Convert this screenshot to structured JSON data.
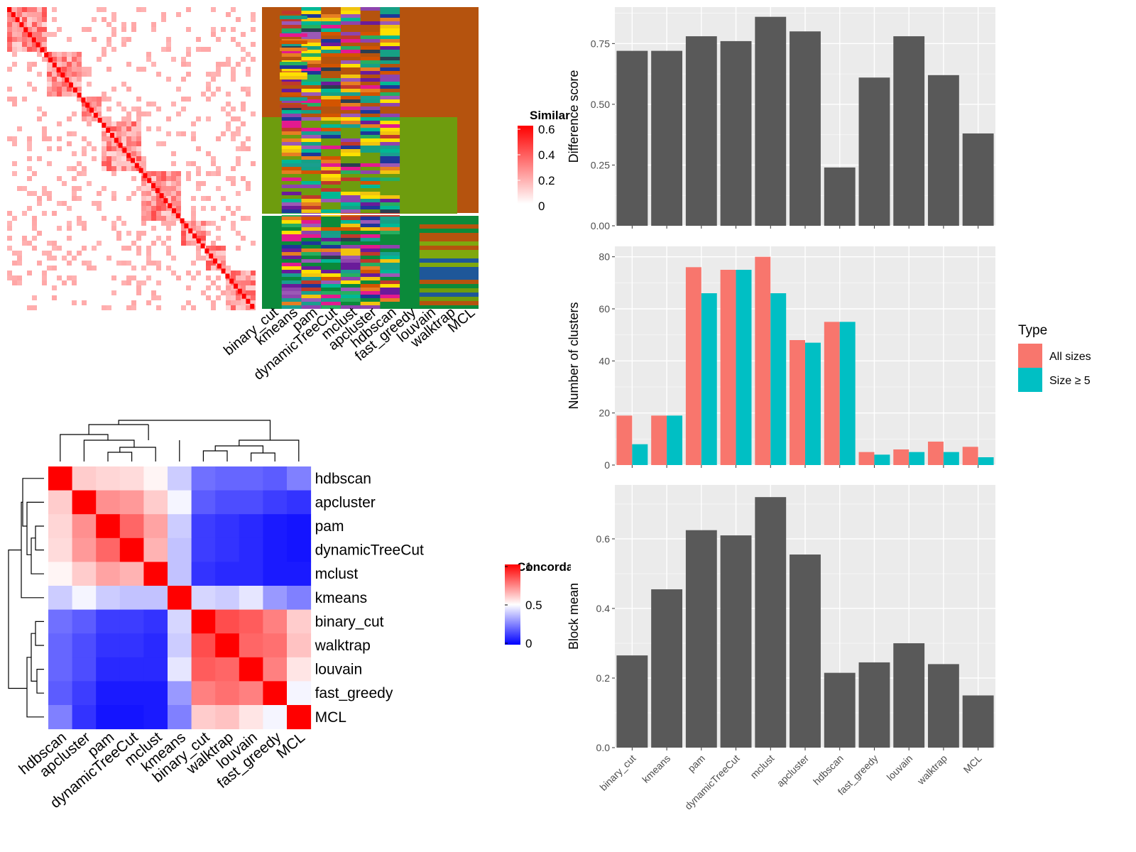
{
  "similarity_panel": {
    "legend_title": "Similarity",
    "legend_ticks": [
      "0.6",
      "0.4",
      "0.2",
      "0"
    ],
    "colors": {
      "high": "#ff0000",
      "low": "#ffffff"
    },
    "method_columns": [
      "binary_cut",
      "kmeans",
      "pam",
      "dynamicTreeCut",
      "mclust",
      "apcluster",
      "hdbscan",
      "fast_greedy",
      "louvain",
      "walktrap",
      "MCL"
    ]
  },
  "concordance_panel": {
    "legend_title": "Concordance",
    "legend_ticks": [
      "1",
      "0.5",
      "0"
    ],
    "colors": {
      "high": "#ff0000",
      "mid": "#ffffff",
      "low": "#0000ff"
    }
  },
  "chart_data": [
    {
      "type": "heatmap",
      "id": "concordance",
      "legend_title": "Concordance",
      "rows": [
        "hdbscan",
        "apcluster",
        "pam",
        "dynamicTreeCut",
        "mclust",
        "kmeans",
        "binary_cut",
        "walktrap",
        "louvain",
        "fast_greedy",
        "MCL"
      ],
      "cols": [
        "hdbscan",
        "apcluster",
        "pam",
        "dynamicTreeCut",
        "mclust",
        "kmeans",
        "binary_cut",
        "walktrap",
        "louvain",
        "fast_greedy",
        "MCL"
      ],
      "values": [
        [
          1.0,
          0.6,
          0.58,
          0.57,
          0.52,
          0.4,
          0.22,
          0.2,
          0.2,
          0.18,
          0.25
        ],
        [
          0.6,
          1.0,
          0.72,
          0.7,
          0.6,
          0.48,
          0.18,
          0.15,
          0.15,
          0.12,
          0.1
        ],
        [
          0.58,
          0.72,
          1.0,
          0.8,
          0.68,
          0.4,
          0.12,
          0.1,
          0.08,
          0.05,
          0.04
        ],
        [
          0.57,
          0.7,
          0.8,
          1.0,
          0.65,
          0.38,
          0.12,
          0.1,
          0.08,
          0.05,
          0.04
        ],
        [
          0.52,
          0.6,
          0.68,
          0.65,
          1.0,
          0.38,
          0.1,
          0.08,
          0.08,
          0.05,
          0.05
        ],
        [
          0.4,
          0.48,
          0.4,
          0.38,
          0.38,
          1.0,
          0.42,
          0.4,
          0.45,
          0.3,
          0.25
        ],
        [
          0.22,
          0.18,
          0.12,
          0.12,
          0.1,
          0.42,
          1.0,
          0.85,
          0.82,
          0.75,
          0.6
        ],
        [
          0.2,
          0.15,
          0.1,
          0.1,
          0.08,
          0.4,
          0.85,
          1.0,
          0.8,
          0.78,
          0.62
        ],
        [
          0.2,
          0.15,
          0.08,
          0.08,
          0.08,
          0.45,
          0.82,
          0.8,
          1.0,
          0.75,
          0.55
        ],
        [
          0.18,
          0.12,
          0.05,
          0.05,
          0.05,
          0.3,
          0.75,
          0.78,
          0.75,
          1.0,
          0.48
        ],
        [
          0.25,
          0.1,
          0.04,
          0.04,
          0.05,
          0.25,
          0.6,
          0.62,
          0.55,
          0.48,
          1.0
        ]
      ]
    },
    {
      "type": "bar",
      "id": "difference-score",
      "categories": [
        "binary_cut",
        "kmeans",
        "pam",
        "dynamicTreeCut",
        "mclust",
        "apcluster",
        "hdbscan",
        "fast_greedy",
        "louvain",
        "walktrap",
        "MCL"
      ],
      "values": [
        0.72,
        0.72,
        0.78,
        0.76,
        0.86,
        0.8,
        0.24,
        0.61,
        0.78,
        0.62,
        0.38
      ],
      "ylabel": "Difference score",
      "ylim": [
        0,
        0.9
      ],
      "yticks": [
        0.0,
        0.25,
        0.5,
        0.75
      ],
      "ytick_labels": [
        "0.00",
        "0.25",
        "0.50",
        "0.75"
      ],
      "grid": true,
      "color": "#595959"
    },
    {
      "type": "bar",
      "id": "number-of-clusters",
      "categories": [
        "binary_cut",
        "kmeans",
        "pam",
        "dynamicTreeCut",
        "mclust",
        "apcluster",
        "hdbscan",
        "fast_greedy",
        "louvain",
        "walktrap",
        "MCL"
      ],
      "series": [
        {
          "name": "All sizes",
          "color": "#f8766d",
          "values": [
            19,
            19,
            76,
            75,
            80,
            48,
            55,
            5,
            6,
            9,
            7
          ]
        },
        {
          "name": "Size ≥ 5",
          "color": "#00bfc4",
          "values": [
            8,
            19,
            66,
            75,
            66,
            47,
            55,
            4,
            5,
            5,
            3
          ]
        }
      ],
      "ylabel": "Number of clusters",
      "ylim": [
        0,
        84
      ],
      "yticks": [
        0,
        20,
        40,
        60,
        80
      ],
      "ytick_labels": [
        "0",
        "20",
        "40",
        "60",
        "80"
      ],
      "legend_title": "Type",
      "legend_position": "right",
      "grid": true
    },
    {
      "type": "bar",
      "id": "block-mean",
      "categories": [
        "binary_cut",
        "kmeans",
        "pam",
        "dynamicTreeCut",
        "mclust",
        "apcluster",
        "hdbscan",
        "fast_greedy",
        "louvain",
        "walktrap",
        "MCL"
      ],
      "values": [
        0.265,
        0.455,
        0.625,
        0.61,
        0.72,
        0.555,
        0.215,
        0.245,
        0.3,
        0.24,
        0.15
      ],
      "ylabel": "Block mean",
      "ylim": [
        0,
        0.755
      ],
      "yticks": [
        0.0,
        0.2,
        0.4,
        0.6
      ],
      "ytick_labels": [
        "0.0",
        "0.2",
        "0.4",
        "0.6"
      ],
      "grid": true,
      "color": "#595959"
    }
  ]
}
